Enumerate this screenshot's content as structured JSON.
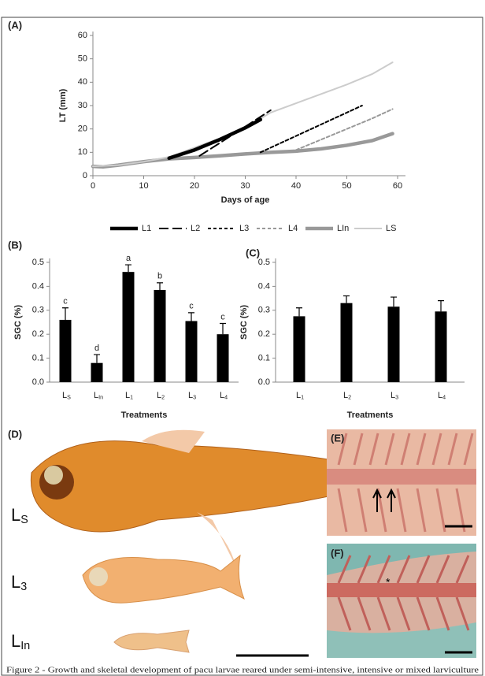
{
  "chart_data": [
    {
      "type": "line",
      "panel": "(A)",
      "y_label": "LT (mm)",
      "x_label": "Days of age",
      "xlim": [
        0,
        60
      ],
      "xticks": [
        0,
        10,
        20,
        30,
        40,
        50,
        60
      ],
      "ylim": [
        0,
        60
      ],
      "yticks": [
        0,
        10,
        20,
        30,
        40,
        50,
        60
      ],
      "series": [
        {
          "name": "L1",
          "color": "#000000",
          "style": "thick",
          "x": [
            15,
            20,
            25,
            30,
            33
          ],
          "values": [
            7.5,
            11,
            15.5,
            20.5,
            24
          ]
        },
        {
          "name": "L2",
          "color": "#000000",
          "style": "long-dash",
          "x": [
            21,
            25,
            30,
            35
          ],
          "values": [
            8.5,
            14,
            21,
            28
          ]
        },
        {
          "name": "L3",
          "color": "#000000",
          "style": "dash",
          "x": [
            33,
            38,
            43,
            48,
            53
          ],
          "values": [
            10,
            15,
            20,
            25,
            30
          ]
        },
        {
          "name": "L4",
          "color": "#999999",
          "style": "dash",
          "x": [
            40,
            45,
            50,
            55,
            59
          ],
          "values": [
            11,
            15.5,
            20,
            24.5,
            28.5
          ]
        },
        {
          "name": "LIn",
          "color": "#999999",
          "style": "thick",
          "x": [
            0,
            2,
            5,
            10,
            15,
            20,
            25,
            30,
            35,
            40,
            45,
            50,
            55,
            59
          ],
          "values": [
            4,
            3.8,
            4.5,
            6,
            7.2,
            7.8,
            8.5,
            9.3,
            10,
            10.5,
            11.5,
            13,
            15,
            18
          ]
        },
        {
          "name": "LS",
          "color": "#cccccc",
          "style": "solid",
          "x": [
            0,
            5,
            10,
            15,
            20,
            25,
            30,
            35,
            40,
            45,
            50,
            55,
            59
          ],
          "values": [
            4,
            4.5,
            6,
            8,
            12,
            16,
            20.5,
            27,
            31,
            35,
            39,
            43.5,
            48.5
          ]
        }
      ]
    },
    {
      "type": "bar",
      "panel": "(B)",
      "y_label": "SGC (%)",
      "x_label": "Treatments",
      "color": "#000000",
      "categories": [
        "LS",
        "LIn",
        "L1",
        "L2",
        "L3",
        "L4"
      ],
      "values": [
        0.26,
        0.08,
        0.46,
        0.385,
        0.255,
        0.2
      ],
      "error": [
        0.05,
        0.035,
        0.03,
        0.03,
        0.035,
        0.045
      ],
      "annotations": [
        "c",
        "d",
        "a",
        "b",
        "c",
        "c"
      ],
      "ylim": [
        0,
        0.5
      ],
      "yticks": [
        {
          "value": 0,
          "label": "0.0"
        },
        0.1,
        0.2,
        0.3,
        0.4,
        0.5
      ]
    },
    {
      "type": "bar",
      "panel": "(C)",
      "y_label": "SGC (%)",
      "x_label": "Treatments",
      "color": "#000000",
      "categories": [
        "L1",
        "L2",
        "L3",
        "L4"
      ],
      "values": [
        0.275,
        0.33,
        0.315,
        0.295
      ],
      "error": [
        0.035,
        0.03,
        0.04,
        0.045
      ],
      "ylim": [
        0,
        0.5
      ],
      "yticks": [
        {
          "value": 0,
          "label": "0.0"
        },
        0.1,
        0.2,
        0.3,
        0.4,
        0.5
      ]
    }
  ],
  "photos": {
    "d": {
      "panel": "(D)",
      "labels": [
        "LS",
        "L3",
        "LIn"
      ]
    },
    "e": {
      "panel": "(E)"
    },
    "f": {
      "panel": "(F)"
    }
  },
  "caption": "Figure 2 - Growth and skeletal development of pacu larvae reared under semi-intensive, intensive or mixed larviculture"
}
